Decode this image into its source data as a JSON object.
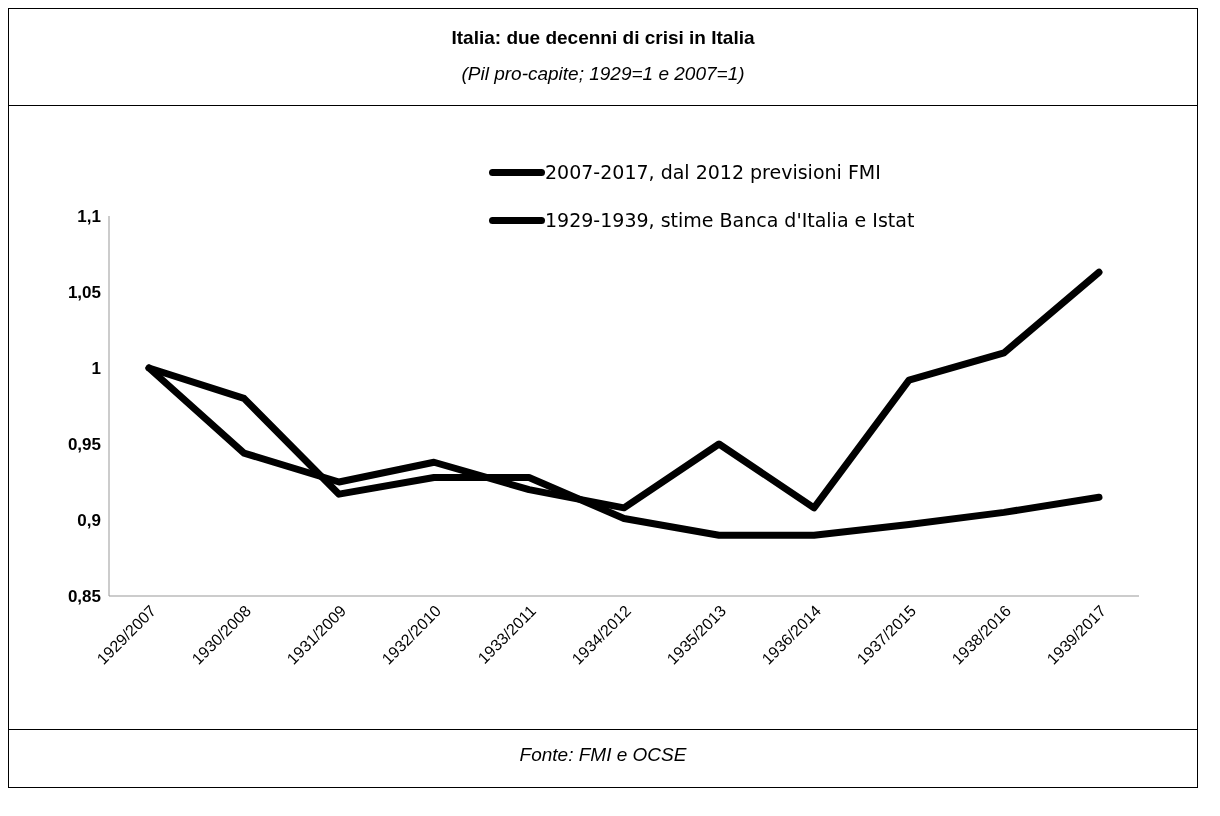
{
  "chart_data": {
    "type": "line",
    "title": "Italia: due decenni di crisi in Italia",
    "subtitle": "(Pil pro-capite; 1929=1 e 2007=1)",
    "categories": [
      "1929/2007",
      "1930/2008",
      "1931/2009",
      "1932/2010",
      "1933/2011",
      "1934/2012",
      "1935/2013",
      "1936/2014",
      "1937/2015",
      "1938/2016",
      "1939/2017"
    ],
    "series": [
      {
        "name": "2007-2017, dal 2012 previsioni FMI",
        "color": "#000000",
        "values": [
          1,
          0.98,
          0.917,
          0.928,
          0.928,
          0.901,
          0.89,
          0.89,
          0.897,
          0.905,
          0.915
        ]
      },
      {
        "name": "1929-1939, stime Banca d'Italia e Istat",
        "color": "#000000",
        "values": [
          1,
          0.944,
          0.925,
          0.938,
          0.92,
          0.908,
          0.95,
          0.908,
          0.992,
          1.01,
          1.063
        ]
      }
    ],
    "ylim": [
      0.85,
      1.1
    ],
    "yticks": [
      {
        "value": 0.85,
        "label": "0,85"
      },
      {
        "value": 0.9,
        "label": "0,9"
      },
      {
        "value": 0.95,
        "label": "0,95"
      },
      {
        "value": 1,
        "label": "1"
      },
      {
        "value": 1.05,
        "label": "1,05"
      },
      {
        "value": 1.1,
        "label": "1,1"
      }
    ],
    "grid": false,
    "legend": "top",
    "marker": "none",
    "line_style": "solid",
    "annotations": [
      "Fonte: FMI e OCSE"
    ]
  }
}
